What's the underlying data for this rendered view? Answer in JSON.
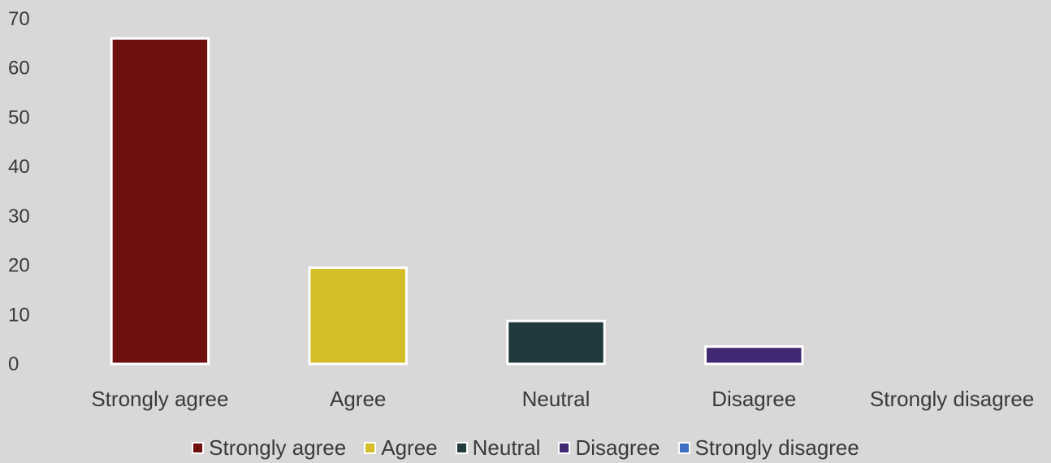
{
  "chart_data": {
    "type": "bar",
    "title": "",
    "xlabel": "",
    "ylabel": "",
    "categories": [
      "Strongly agree",
      "Agree",
      "Neutral",
      "Disagree",
      "Strongly disagree"
    ],
    "values": [
      66,
      19.5,
      8.7,
      3.5,
      0
    ],
    "colors": [
      "#6e1010",
      "#d4bd26",
      "#213a3d",
      "#402872",
      "#3d70c0"
    ],
    "ylim": [
      0,
      70
    ],
    "yticks": [
      0,
      10,
      20,
      30,
      40,
      50,
      60,
      70
    ],
    "grid": false,
    "legend": {
      "position": "bottom",
      "entries": [
        "Strongly agree",
        "Agree",
        "Neutral",
        "Disagree",
        "Strongly disagree"
      ]
    },
    "bar_edge_color": "#ffffff",
    "background_color": "#d9d7d8"
  }
}
